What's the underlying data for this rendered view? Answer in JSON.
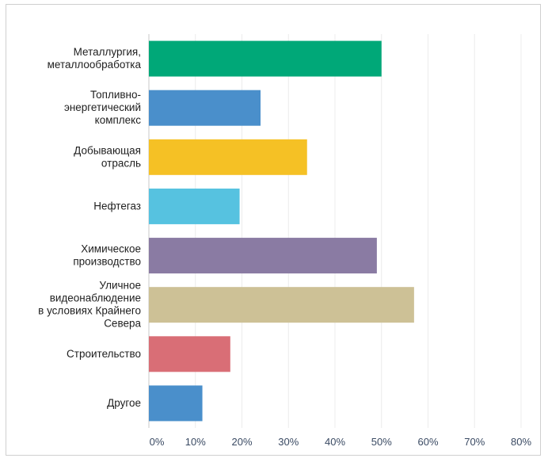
{
  "chart_data": {
    "type": "bar",
    "orientation": "horizontal",
    "categories": [
      "Металлургия, металлообработка",
      "Топливно-энергетический комплекс",
      "Добывающая отрасль",
      "Нефтегаз",
      "Химическое производство",
      "Уличное видеонаблюдение в условиях Крайнего Севера",
      "Строительство",
      "Другое"
    ],
    "category_label_lines": [
      [
        "Металлургия,",
        "металлообработка"
      ],
      [
        "Топливно-",
        "энергетический",
        "комплекс"
      ],
      [
        "Добывающая",
        "отрасль"
      ],
      [
        "Нефтегаз"
      ],
      [
        "Химическое",
        "производство"
      ],
      [
        "Уличное",
        "видеонаблюдение",
        "в условиях Крайнего",
        "Севера"
      ],
      [
        "Строительство"
      ],
      [
        "Другое"
      ]
    ],
    "values": [
      50,
      24,
      34,
      19.5,
      49,
      57,
      17.5,
      11.5
    ],
    "colors": [
      "#00a878",
      "#4a8fcb",
      "#f5c125",
      "#56c2e0",
      "#8a7ba3",
      "#cdc196",
      "#d96e76",
      "#4a8fcb"
    ],
    "xlim": [
      0,
      80
    ],
    "xticks": [
      "0%",
      "10%",
      "20%",
      "30%",
      "40%",
      "50%",
      "60%",
      "70%",
      "80%"
    ],
    "xtick_values": [
      0,
      10,
      20,
      30,
      40,
      50,
      60,
      70,
      80
    ],
    "grid": true,
    "title": "",
    "xlabel": "",
    "ylabel": ""
  }
}
